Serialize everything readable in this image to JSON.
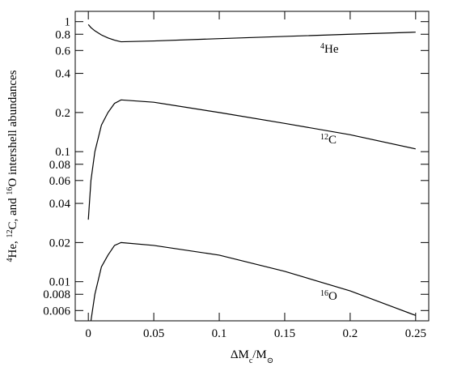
{
  "chart_data": {
    "type": "line",
    "x_label": [
      {
        "text": "ΔM"
      },
      {
        "sub": "c"
      },
      {
        "text": "/M"
      },
      {
        "sub": "⊙"
      }
    ],
    "y_label": [
      {
        "sup": "4"
      },
      {
        "text": "He, "
      },
      {
        "sup": "12"
      },
      {
        "text": "C, and "
      },
      {
        "sup": "16"
      },
      {
        "text": "O intershell abundances"
      }
    ],
    "x": [
      0,
      0.002,
      0.005,
      0.01,
      0.015,
      0.02,
      0.025,
      0.05,
      0.1,
      0.15,
      0.2,
      0.25
    ],
    "series": [
      {
        "label": {
          "sup": "4",
          "text": "He"
        },
        "color": "#000000",
        "values": [
          0.95,
          0.9,
          0.85,
          0.79,
          0.75,
          0.72,
          0.7,
          0.71,
          0.74,
          0.77,
          0.8,
          0.83
        ]
      },
      {
        "label": {
          "sup": "12",
          "text": "C"
        },
        "color": "#000000",
        "values": [
          0.03,
          0.06,
          0.1,
          0.16,
          0.2,
          0.235,
          0.25,
          0.24,
          0.2,
          0.165,
          0.135,
          0.105
        ]
      },
      {
        "label": {
          "sup": "16",
          "text": "O"
        },
        "color": "#000000",
        "values": [
          null,
          0.005,
          0.008,
          0.013,
          0.016,
          0.019,
          0.02,
          0.019,
          0.016,
          0.012,
          0.0085,
          0.0055
        ]
      }
    ],
    "xlim": [
      -0.01,
      0.26
    ],
    "xticks": [
      0,
      0.05,
      0.1,
      0.15,
      0.2,
      0.25
    ],
    "ylim": [
      0.005,
      1.2
    ],
    "yscale": "log",
    "yticks": [
      1,
      0.8,
      0.6,
      0.4,
      0.2,
      0.1,
      0.08,
      0.06,
      0.04,
      0.02,
      0.01,
      0.008,
      0.006
    ]
  }
}
